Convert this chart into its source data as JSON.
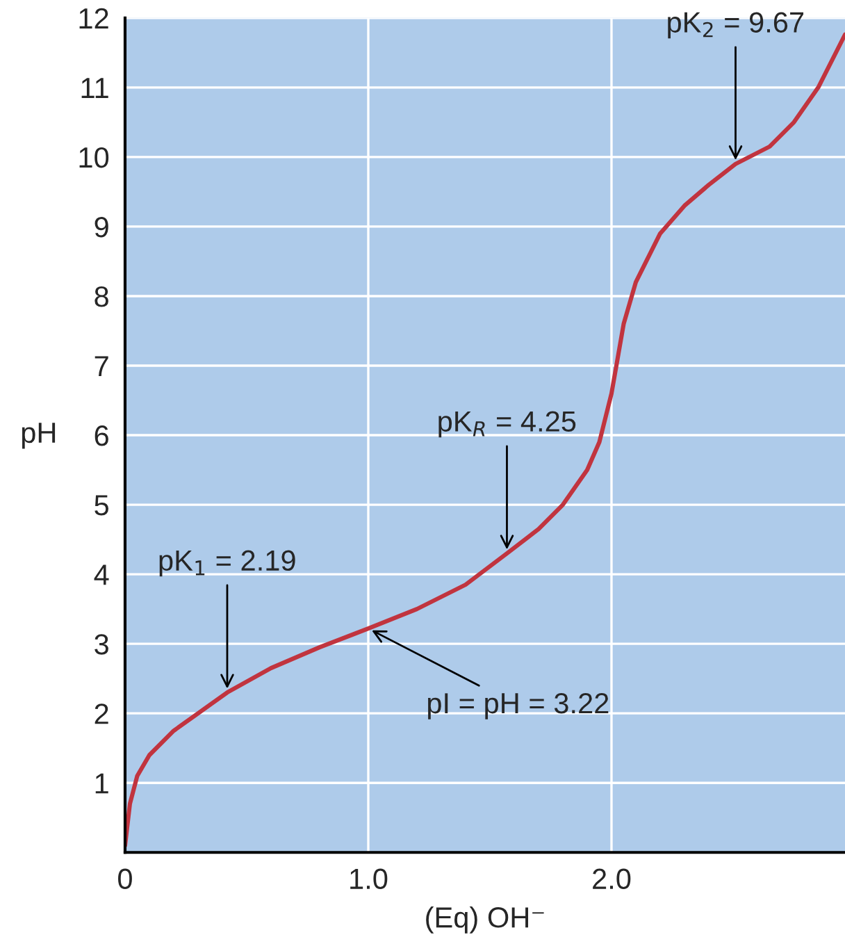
{
  "chart_data": {
    "type": "line",
    "xlabel": "(Eq) OH⁻",
    "ylabel": "pH",
    "x": [
      0,
      0.02,
      0.05,
      0.1,
      0.2,
      0.3,
      0.42,
      0.6,
      0.8,
      1.0,
      1.2,
      1.4,
      1.57,
      1.7,
      1.8,
      1.9,
      1.95,
      2.0,
      2.05,
      2.1,
      2.2,
      2.3,
      2.4,
      2.51,
      2.65,
      2.75,
      2.85,
      2.96
    ],
    "series": [
      {
        "color": "#c1343f",
        "values": [
          0.1,
          0.7,
          1.1,
          1.4,
          1.75,
          2.0,
          2.3,
          2.65,
          2.95,
          3.22,
          3.5,
          3.85,
          4.3,
          4.65,
          5.0,
          5.5,
          5.9,
          6.6,
          7.6,
          8.2,
          8.9,
          9.3,
          9.6,
          9.9,
          10.15,
          10.5,
          11.0,
          11.76
        ]
      }
    ],
    "annotations": [
      {
        "text": "pK$_{1}$ = 2.19",
        "x": 0.42,
        "y": 2.3
      },
      {
        "text": "pI = pH = 3.22",
        "x": 1.0,
        "y": 3.22
      },
      {
        "text": "pK$_{R}$ = 4.25",
        "x": 1.57,
        "y": 4.3
      },
      {
        "text": "pK$_{2}$ = 9.67",
        "x": 2.51,
        "y": 9.9
      }
    ],
    "xlim": [
      0,
      2.96
    ],
    "ylim": [
      0,
      12
    ],
    "xticks": [
      {
        "value": 0,
        "label": "0"
      },
      {
        "value": 1,
        "label": "1.0"
      },
      {
        "value": 2,
        "label": "2.0"
      }
    ],
    "yticks": [
      1,
      2,
      3,
      4,
      5,
      6,
      7,
      8,
      9,
      10,
      11,
      12
    ],
    "grid": true,
    "marker": "none",
    "line_style": "solid"
  }
}
